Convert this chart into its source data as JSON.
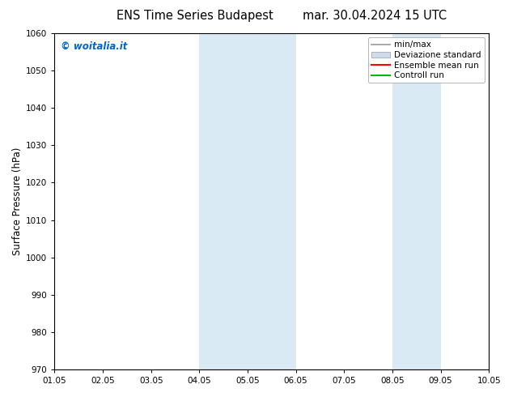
{
  "title_left": "ENS Time Series Budapest",
  "title_right": "mar. 30.04.2024 15 UTC",
  "ylabel": "Surface Pressure (hPa)",
  "xlim": [
    0,
    9
  ],
  "ylim": [
    970,
    1060
  ],
  "yticks": [
    970,
    980,
    990,
    1000,
    1010,
    1020,
    1030,
    1040,
    1050,
    1060
  ],
  "xtick_labels": [
    "01.05",
    "02.05",
    "03.05",
    "04.05",
    "05.05",
    "06.05",
    "07.05",
    "08.05",
    "09.05",
    "10.05"
  ],
  "watermark": "© woitalia.it",
  "watermark_color": "#0066cc",
  "shaded_bands": [
    {
      "x_start": 3.0,
      "x_end": 3.5,
      "color": "#daeaf5"
    },
    {
      "x_start": 3.5,
      "x_end": 5.0,
      "color": "#daeaf5"
    },
    {
      "x_start": 7.0,
      "x_end": 8.0,
      "color": "#daeaf5"
    }
  ],
  "legend_entries": [
    {
      "label": "min/max",
      "color": "#999999",
      "lw": 1.2,
      "type": "line"
    },
    {
      "label": "Deviazione standard",
      "color": "#ccddee",
      "lw": 6,
      "type": "patch"
    },
    {
      "label": "Ensemble mean run",
      "color": "#ff0000",
      "lw": 1.5,
      "type": "line"
    },
    {
      "label": "Controll run",
      "color": "#00bb00",
      "lw": 1.5,
      "type": "line"
    }
  ],
  "background_color": "#ffffff",
  "title_fontsize": 10.5,
  "tick_fontsize": 7.5,
  "ylabel_fontsize": 8.5,
  "legend_fontsize": 7.5
}
